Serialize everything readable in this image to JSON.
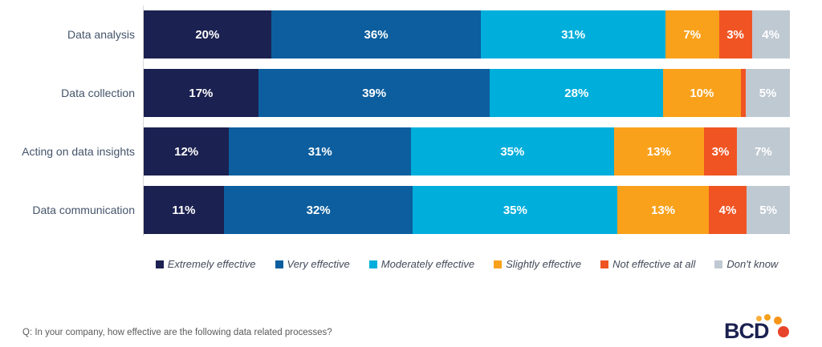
{
  "chart_data": {
    "type": "bar",
    "orientation": "horizontal-stacked",
    "title": "",
    "xlabel": "",
    "ylabel": "",
    "grid": false,
    "legend_position": "bottom",
    "categories": [
      "Data analysis",
      "Data collection",
      "Acting on data insights",
      "Data communication"
    ],
    "series": [
      {
        "name": "Extremely effective",
        "color": "#1b2150",
        "values": [
          20,
          17,
          12,
          11
        ]
      },
      {
        "name": "Very effective",
        "color": "#0c5e9e",
        "values": [
          36,
          39,
          31,
          32
        ]
      },
      {
        "name": "Moderately effective",
        "color": "#00aedb",
        "values": [
          31,
          28,
          35,
          35
        ]
      },
      {
        "name": "Slightly effective",
        "color": "#f9a11b",
        "values": [
          7,
          10,
          13,
          13
        ]
      },
      {
        "name": "Not effective at all",
        "color": "#f05423",
        "values": [
          3,
          1,
          3,
          4
        ]
      },
      {
        "name": "Don't know",
        "color": "#bfc9d2",
        "values": [
          4,
          5,
          7,
          5
        ]
      }
    ],
    "data_labels": [
      [
        "20%",
        "36%",
        "31%",
        "7%",
        "3%",
        "4%"
      ],
      [
        "17%",
        "39%",
        "28%",
        "10%",
        "",
        "5%"
      ],
      [
        "12%",
        "31%",
        "35%",
        "13%",
        "3%",
        "7%"
      ],
      [
        "11%",
        "32%",
        "35%",
        "13%",
        "4%",
        "5%"
      ]
    ]
  },
  "footer": {
    "question": "Q: In your company, how effective are the following data related processes?"
  },
  "logo": {
    "text": "BCD",
    "text_color": "#1b2150",
    "dot_colors": [
      "#fbb03b",
      "#f6a01a",
      "#f6941a",
      "#e8432b",
      "#dd2f28"
    ]
  }
}
